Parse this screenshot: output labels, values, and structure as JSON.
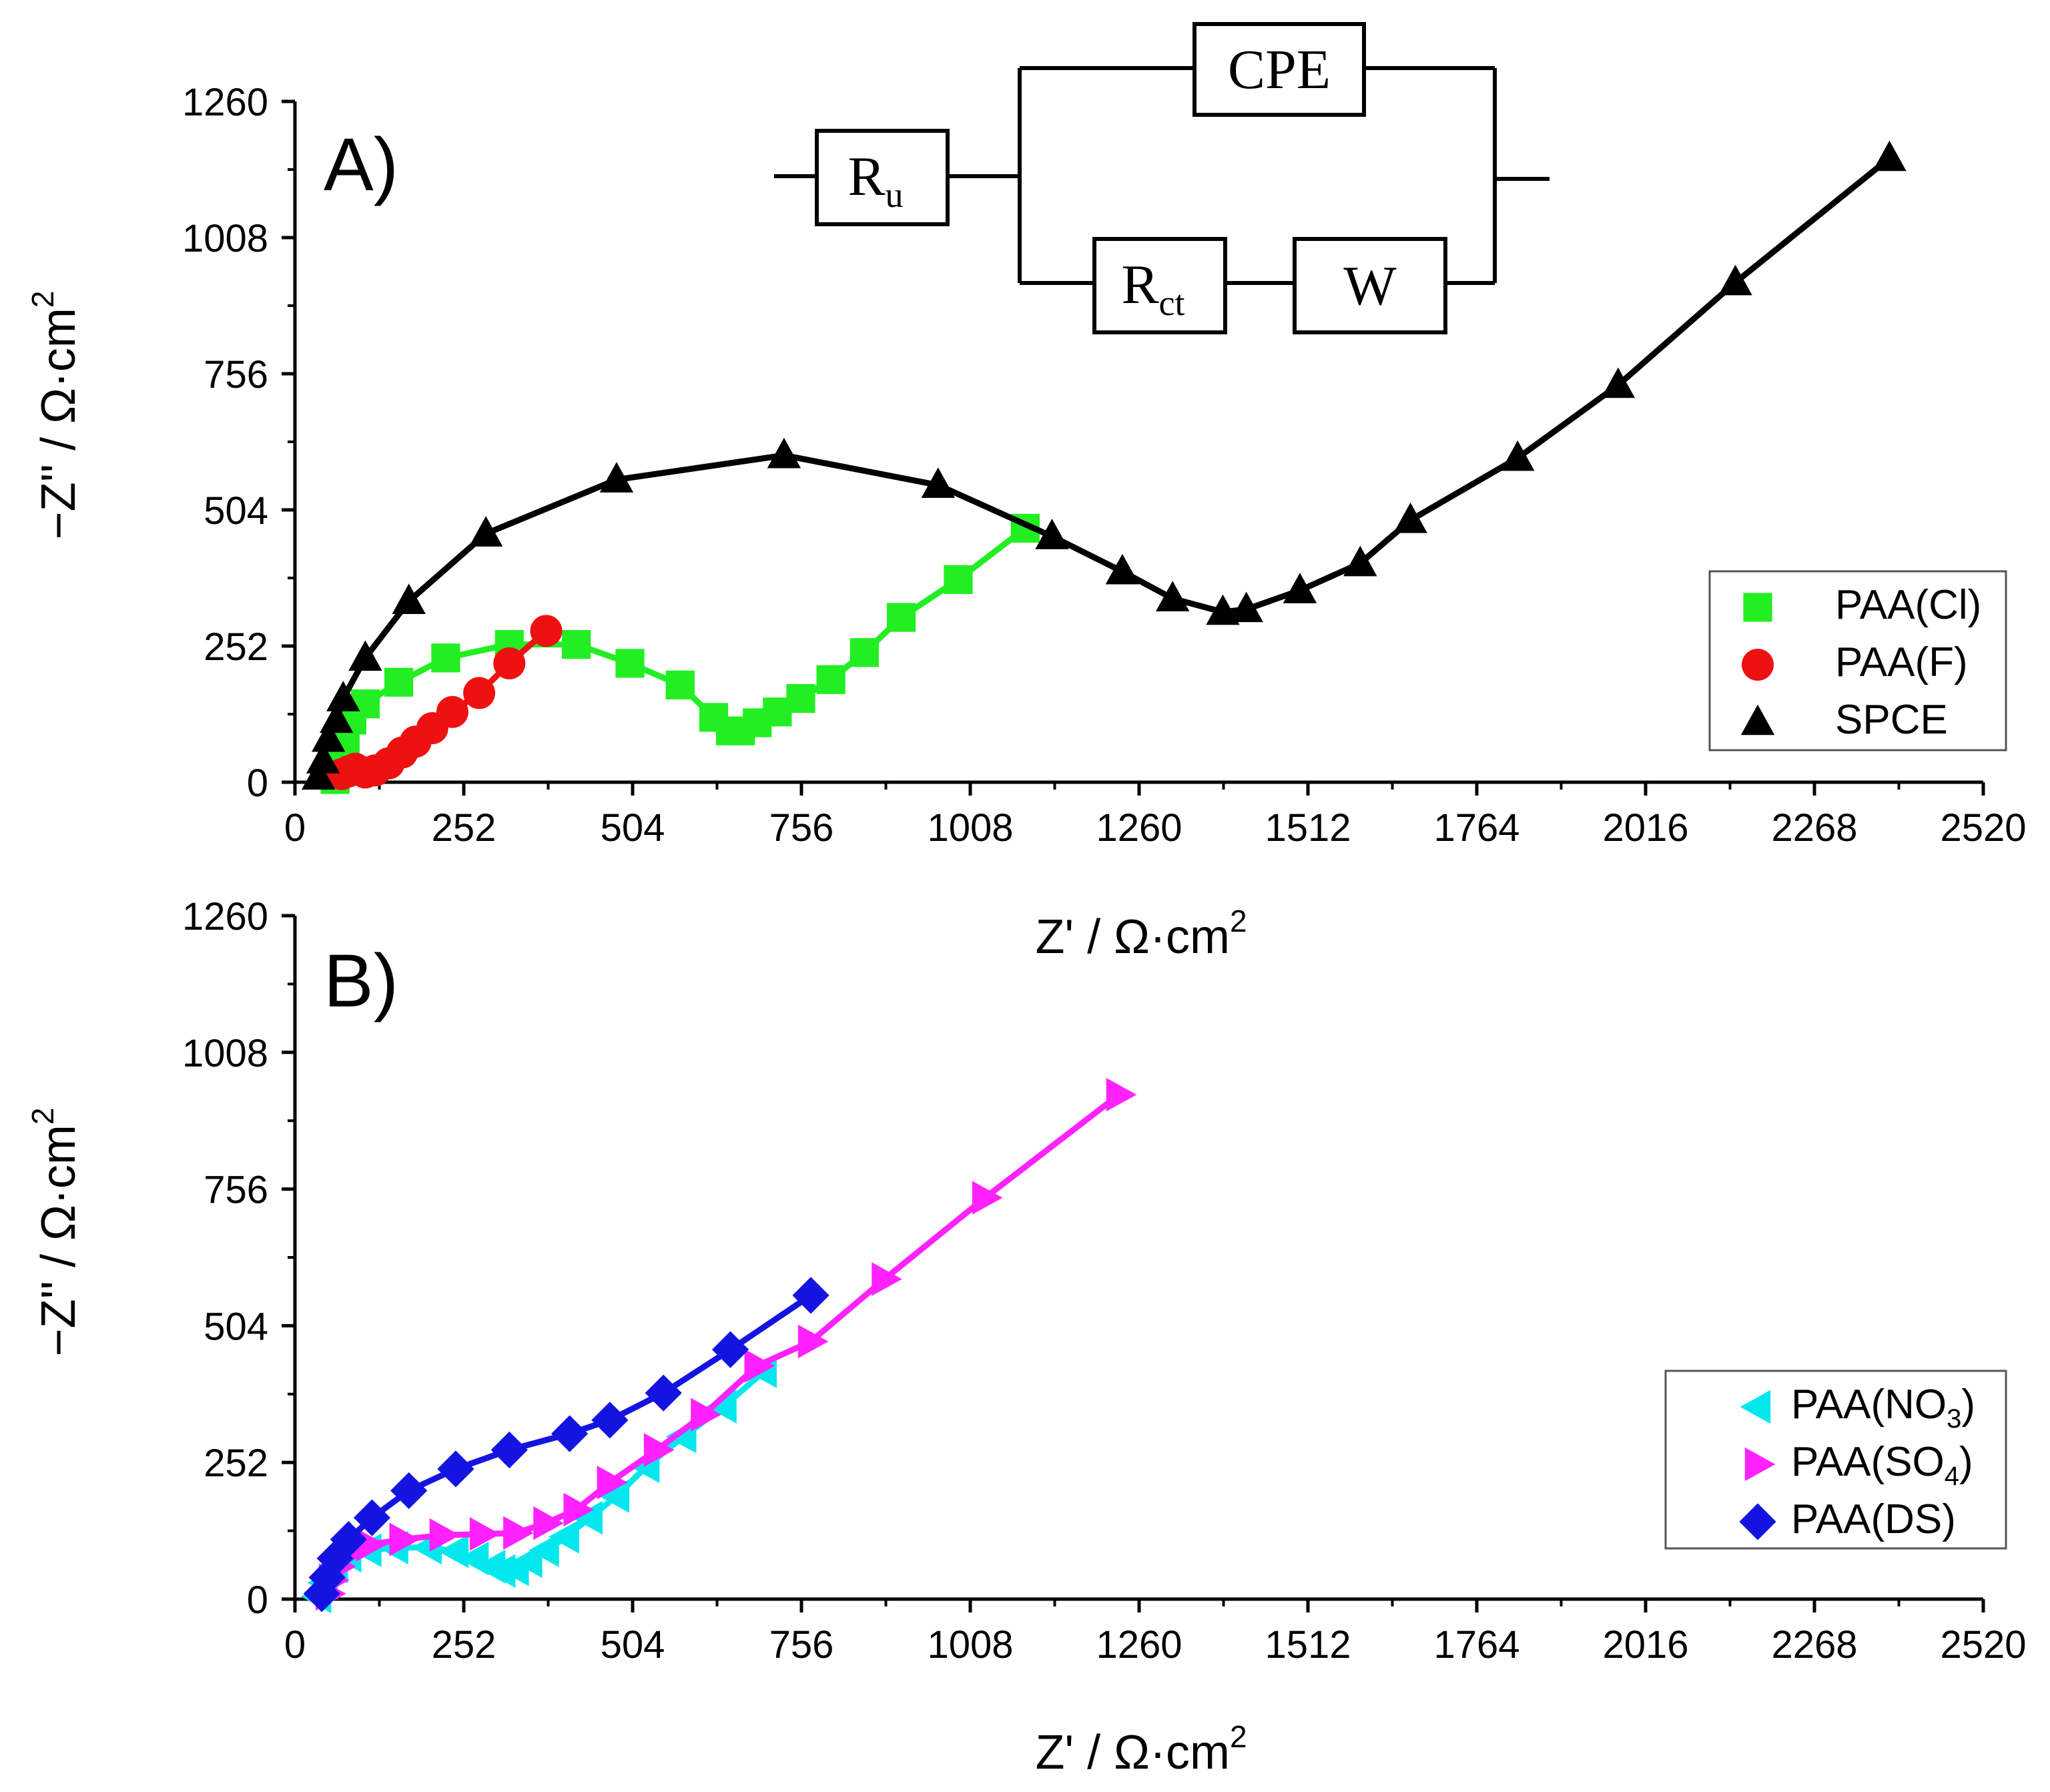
{
  "colors": {
    "PAA(Cl)": "#22ee22",
    "PAA(F)": "#ee1111",
    "SPCE": "#000000",
    "PAA(NO3)": "#00e8ee",
    "PAA(SO4)": "#ff22ff",
    "PAA(DS)": "#1414e0"
  },
  "circuit": {
    "Ru_main": "R",
    "Ru_sub": "u",
    "CPE": "CPE",
    "Rct_main": "R",
    "Rct_sub": "ct",
    "W": "W"
  },
  "chart_data": [
    {
      "type": "line",
      "panel_label": "A)",
      "xlabel_main": "Z' / Ω·cm",
      "ylabel_main": "−Z'' / Ω·cm",
      "label_superscript": "2",
      "xlim": [
        0,
        2520
      ],
      "ylim": [
        0,
        1260
      ],
      "xticks": [
        0,
        252,
        504,
        756,
        1008,
        1260,
        1512,
        1764,
        2016,
        2268,
        2520
      ],
      "yticks": [
        0,
        252,
        504,
        756,
        1008,
        1260
      ],
      "legend_position": "lower-right",
      "series": [
        {
          "name": "PAA(Cl)",
          "label_main": "PAA(Cl)",
          "label_sub": "",
          "label_end": "",
          "marker": "square",
          "points": [
            [
              60,
              5
            ],
            [
              68,
              40
            ],
            [
              75,
              80
            ],
            [
              85,
              115
            ],
            [
              105,
              145
            ],
            [
              155,
              185
            ],
            [
              225,
              230
            ],
            [
              320,
              255
            ],
            [
              420,
              255
            ],
            [
              500,
              220
            ],
            [
              575,
              180
            ],
            [
              625,
              120
            ],
            [
              650,
              95
            ],
            [
              665,
              95
            ],
            [
              690,
              110
            ],
            [
              720,
              130
            ],
            [
              755,
              155
            ],
            [
              800,
              190
            ],
            [
              850,
              240
            ],
            [
              905,
              305
            ],
            [
              990,
              375
            ],
            [
              1090,
              470
            ]
          ]
        },
        {
          "name": "PAA(F)",
          "label_main": "PAA(F)",
          "label_sub": "",
          "label_end": "",
          "marker": "circle",
          "points": [
            [
              70,
              15
            ],
            [
              80,
              20
            ],
            [
              90,
              25
            ],
            [
              105,
              18
            ],
            [
              120,
              22
            ],
            [
              140,
              35
            ],
            [
              160,
              55
            ],
            [
              180,
              75
            ],
            [
              205,
              100
            ],
            [
              235,
              130
            ],
            [
              275,
              165
            ],
            [
              320,
              220
            ],
            [
              375,
              280
            ]
          ]
        },
        {
          "name": "SPCE",
          "label_main": "SPCE",
          "label_sub": "",
          "label_end": "",
          "marker": "triangle-up",
          "points": [
            [
              35,
              10
            ],
            [
              42,
              40
            ],
            [
              50,
              80
            ],
            [
              62,
              115
            ],
            [
              72,
              155
            ],
            [
              105,
              230
            ],
            [
              170,
              335
            ],
            [
              285,
              460
            ],
            [
              480,
              560
            ],
            [
              730,
              605
            ],
            [
              960,
              550
            ],
            [
              1130,
              455
            ],
            [
              1235,
              390
            ],
            [
              1310,
              340
            ],
            [
              1385,
              315
            ],
            [
              1420,
              320
            ],
            [
              1500,
              355
            ],
            [
              1590,
              405
            ],
            [
              1665,
              485
            ],
            [
              1825,
              600
            ],
            [
              1975,
              735
            ],
            [
              2150,
              925
            ],
            [
              2380,
              1155
            ]
          ]
        }
      ]
    },
    {
      "type": "line",
      "panel_label": "B)",
      "xlabel_main": "Z' / Ω·cm",
      "ylabel_main": "−Z'' / Ω·cm",
      "label_superscript": "2",
      "xlim": [
        0,
        2520
      ],
      "ylim": [
        0,
        1260
      ],
      "xticks": [
        0,
        252,
        504,
        756,
        1008,
        1260,
        1512,
        1764,
        2016,
        2268,
        2520
      ],
      "yticks": [
        0,
        252,
        504,
        756,
        1008,
        1260
      ],
      "legend_position": "lower-right",
      "series": [
        {
          "name": "PAA(NO3)",
          "label_main": "PAA(NO",
          "label_sub": "3",
          "label_end": ")",
          "marker": "triangle-left",
          "points": [
            [
              35,
              5
            ],
            [
              45,
              30
            ],
            [
              60,
              60
            ],
            [
              80,
              80
            ],
            [
              110,
              90
            ],
            [
              150,
              95
            ],
            [
              200,
              95
            ],
            [
              240,
              88
            ],
            [
              270,
              75
            ],
            [
              295,
              60
            ],
            [
              310,
              52
            ],
            [
              330,
              55
            ],
            [
              350,
              70
            ],
            [
              375,
              90
            ],
            [
              405,
              115
            ],
            [
              440,
              150
            ],
            [
              480,
              190
            ],
            [
              525,
              245
            ],
            [
              580,
              300
            ],
            [
              640,
              355
            ],
            [
              700,
              420
            ]
          ]
        },
        {
          "name": "PAA(SO4)",
          "label_main": "PAA(SO",
          "label_sub": "4",
          "label_end": ")",
          "marker": "triangle-right",
          "points": [
            [
              50,
              10
            ],
            [
              55,
              35
            ],
            [
              65,
              60
            ],
            [
              80,
              85
            ],
            [
              110,
              100
            ],
            [
              160,
              110
            ],
            [
              220,
              118
            ],
            [
              280,
              120
            ],
            [
              330,
              122
            ],
            [
              375,
              140
            ],
            [
              420,
              165
            ],
            [
              470,
              215
            ],
            [
              540,
              275
            ],
            [
              610,
              340
            ],
            [
              690,
              430
            ],
            [
              770,
              475
            ],
            [
              880,
              590
            ],
            [
              1030,
              740
            ],
            [
              1230,
              930
            ]
          ]
        },
        {
          "name": "PAA(DS)",
          "label_main": "PAA(DS)",
          "label_sub": "",
          "label_end": "",
          "marker": "diamond",
          "points": [
            [
              40,
              10
            ],
            [
              48,
              40
            ],
            [
              60,
              75
            ],
            [
              80,
              110
            ],
            [
              115,
              150
            ],
            [
              170,
              200
            ],
            [
              240,
              240
            ],
            [
              320,
              275
            ],
            [
              410,
              305
            ],
            [
              470,
              330
            ],
            [
              550,
              380
            ],
            [
              650,
              460
            ],
            [
              770,
              560
            ]
          ]
        }
      ]
    }
  ]
}
